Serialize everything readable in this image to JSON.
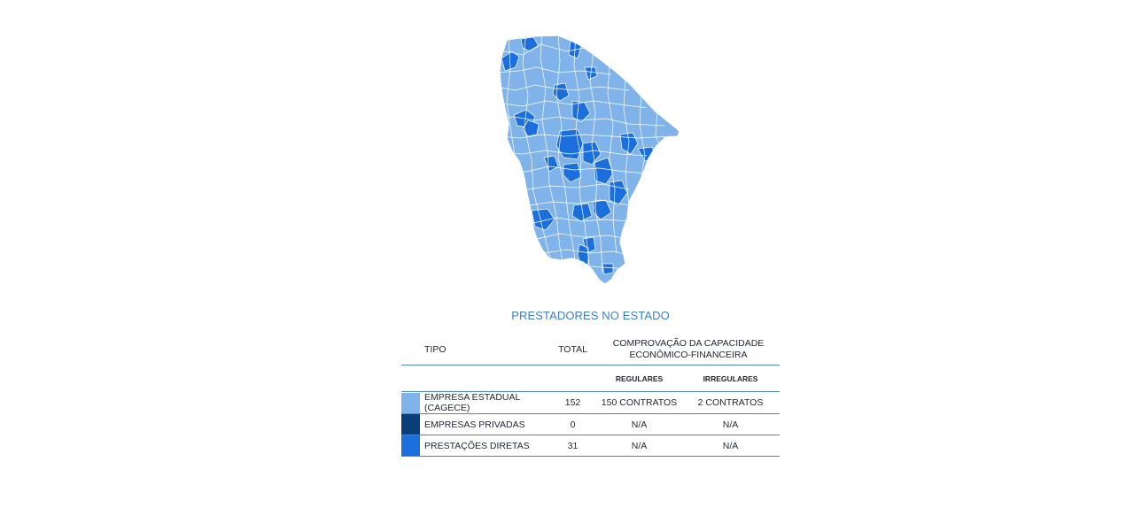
{
  "title": "PRESTADORES NO ESTADO",
  "colors": {
    "empresa_estadual": "#7fb3ea",
    "empresas_privadas": "#0a3e7a",
    "prestacoes_diretas": "#1a6fdc",
    "rule": "#4a86c8",
    "title": "#3d7fc7"
  },
  "map": {
    "name": "ceara-municipalities-map"
  },
  "table": {
    "headers": {
      "tipo": "TIPO",
      "total": "TOTAL",
      "comprovacao_line1": "COMPROVAÇÃO DA CAPACIDADE",
      "comprovacao_line2": "ECONÔMICO-FINANCEIRA",
      "regulares": "REGULARES",
      "irregulares": "IRREGULARES"
    },
    "rows": [
      {
        "tipo": "EMPRESA ESTADUAL (CAGECE)",
        "total": "152",
        "regulares": "150 CONTRATOS",
        "irregulares": "2 CONTRATOS",
        "color_key": "empresa_estadual"
      },
      {
        "tipo": "EMPRESAS PRIVADAS",
        "total": "0",
        "regulares": "N/A",
        "irregulares": "N/A",
        "color_key": "empresas_privadas"
      },
      {
        "tipo": "PRESTAÇÕES DIRETAS",
        "total": "31",
        "regulares": "N/A",
        "irregulares": "N/A",
        "color_key": "prestacoes_diretas"
      }
    ]
  }
}
